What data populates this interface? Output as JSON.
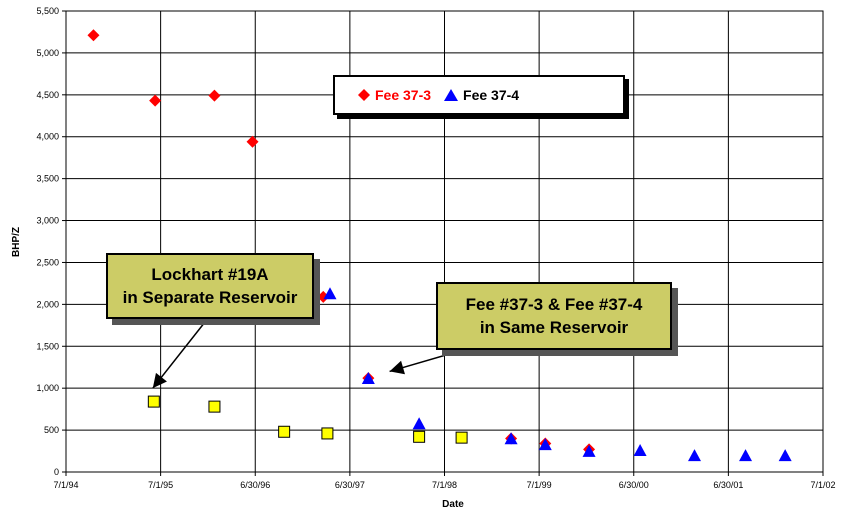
{
  "chart_data": {
    "type": "scatter",
    "title": "",
    "xlabel": "Date",
    "ylabel": "BHP/Z",
    "x_ticks": [
      "7/1/94",
      "7/1/95",
      "6/30/96",
      "6/30/97",
      "7/1/98",
      "7/1/99",
      "6/30/00",
      "6/30/01",
      "7/1/02"
    ],
    "y_ticks": [
      "0",
      "500",
      "1,000",
      "1,500",
      "2,000",
      "2,500",
      "3,000",
      "3,500",
      "4,000",
      "4,500",
      "5,000",
      "5,500"
    ],
    "xlim": [
      "1994-07-01",
      "2002-07-01"
    ],
    "ylim": [
      0,
      5500
    ],
    "grid": true,
    "legend_position": "top-center",
    "series": [
      {
        "name": "Fee 37-3",
        "marker": "diamond",
        "color": "#ff0000",
        "points": [
          {
            "x": "1994-10-15",
            "y": 5210
          },
          {
            "x": "1995-06-10",
            "y": 4430
          },
          {
            "x": "1996-01-25",
            "y": 4490
          },
          {
            "x": "1996-06-20",
            "y": 3940
          },
          {
            "x": "1997-03-20",
            "y": 2090
          },
          {
            "x": "1997-09-10",
            "y": 1120
          },
          {
            "x": "1999-03-15",
            "y": 400
          },
          {
            "x": "1999-07-25",
            "y": 340
          },
          {
            "x": "2000-01-10",
            "y": 270
          }
        ]
      },
      {
        "name": "Fee 37-4",
        "marker": "triangle",
        "color": "#0000ff",
        "points": [
          {
            "x": "1997-04-15",
            "y": 2120
          },
          {
            "x": "1997-09-10",
            "y": 1110
          },
          {
            "x": "1998-03-25",
            "y": 570
          },
          {
            "x": "1999-03-15",
            "y": 390
          },
          {
            "x": "1999-07-25",
            "y": 320
          },
          {
            "x": "2000-01-10",
            "y": 240
          },
          {
            "x": "2000-07-25",
            "y": 250
          },
          {
            "x": "2001-02-20",
            "y": 190
          },
          {
            "x": "2001-09-05",
            "y": 190
          },
          {
            "x": "2002-02-05",
            "y": 190
          }
        ]
      },
      {
        "marker": "square",
        "color": "#ffff00",
        "points": [
          {
            "x": "1995-06-05",
            "y": 840
          },
          {
            "x": "1996-01-25",
            "y": 780
          },
          {
            "x": "1996-10-20",
            "y": 480
          },
          {
            "x": "1997-04-05",
            "y": 460
          },
          {
            "x": "1998-03-25",
            "y": 420
          },
          {
            "x": "1998-09-05",
            "y": 410
          }
        ]
      }
    ],
    "annotations": [
      {
        "lines": [
          "Lockhart #19A",
          "in",
          "Separate Reservoir"
        ],
        "arrow_to": {
          "x": "1995-06-01",
          "y": 1000
        }
      },
      {
        "lines": [
          "Fee #37-3 & Fee #37-4",
          "in Same Reservoir"
        ],
        "arrow_to": {
          "x": "1997-12-01",
          "y": 1200
        }
      }
    ]
  },
  "legend": {
    "items": [
      {
        "label": "Fee 37-3",
        "color": "#ff0000"
      },
      {
        "label": "Fee 37-4",
        "color": "#0000ff"
      }
    ]
  },
  "callouts": {
    "lockhart": {
      "line1": "Lockhart #19A",
      "line2": "in Separate Reservoir"
    },
    "fee": {
      "line1": "Fee #37-3 & Fee #37-4",
      "line2": "in Same Reservoir"
    }
  }
}
